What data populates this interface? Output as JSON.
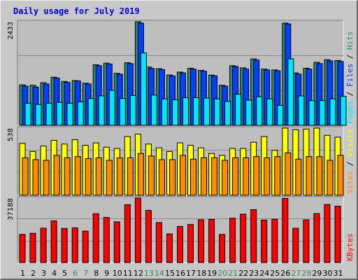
{
  "title": "Daily usage for July 2019",
  "colors": {
    "pages": "#00e8ff",
    "files": "#0040ff",
    "hits": "#2e8b7a",
    "visits": "#ffff00",
    "sites": "#ff8c00",
    "kbytes": "#ff0000",
    "weekend_day": "#2e8b57",
    "weekday_day": "#000000",
    "panel_bg": "#bebebe",
    "frame_bg": "#c8c8c8"
  },
  "chart_data": {
    "type": "bar",
    "categories": [
      "1",
      "2",
      "3",
      "4",
      "5",
      "6",
      "7",
      "8",
      "9",
      "10",
      "11",
      "12",
      "13",
      "14",
      "15",
      "16",
      "17",
      "18",
      "19",
      "20",
      "21",
      "22",
      "23",
      "24",
      "25",
      "26",
      "27",
      "28",
      "29",
      "30",
      "31"
    ],
    "weekend_days": [
      "6",
      "7",
      "13",
      "14",
      "20",
      "21",
      "27",
      "28"
    ],
    "panels": [
      {
        "id": "hits",
        "ymax_label": "2433",
        "ymax": 2433,
        "legend": [
          {
            "text": "Pages",
            "color_key": "pages"
          },
          {
            "text": " / ",
            "color_key": "weekday_day"
          },
          {
            "text": "Files",
            "color_key": "files"
          },
          {
            "text": " / ",
            "color_key": "weekday_day"
          },
          {
            "text": "Hits",
            "color_key": "hits"
          }
        ],
        "series": [
          {
            "name": "Hits",
            "color_key": "hits",
            "values": [
              950,
              940,
              1000,
              1130,
              1030,
              1050,
              990,
              1420,
              1460,
              1220,
              1470,
              2433,
              1370,
              1330,
              1180,
              1250,
              1340,
              1290,
              1180,
              940,
              1400,
              1350,
              1560,
              1320,
              1300,
              2400,
              1230,
              1340,
              1480,
              1540,
              1520
            ]
          },
          {
            "name": "Files",
            "color_key": "files",
            "values": [
              920,
              900,
              970,
              1110,
              1010,
              1040,
              970,
              1400,
              1440,
              1200,
              1450,
              2400,
              1340,
              1310,
              1160,
              1230,
              1320,
              1270,
              1160,
              920,
              1380,
              1320,
              1530,
              1300,
              1280,
              2380,
              1200,
              1320,
              1450,
              1510,
              1500
            ]
          },
          {
            "name": "Pages",
            "color_key": "pages",
            "values": [
              520,
              490,
              520,
              540,
              520,
              550,
              630,
              690,
              820,
              630,
              700,
              1700,
              710,
              620,
              600,
              650,
              650,
              640,
              620,
              560,
              730,
              590,
              670,
              620,
              470,
              1560,
              690,
              580,
              580,
              620,
              680
            ]
          }
        ]
      },
      {
        "id": "visits",
        "ymax_label": "538",
        "ymax": 538,
        "legend": [
          {
            "text": "Sites",
            "color_key": "sites"
          },
          {
            "text": " / ",
            "color_key": "weekday_day"
          },
          {
            "text": "Visits",
            "color_key": "visits"
          }
        ],
        "series": [
          {
            "name": "Visits",
            "color_key": "visits",
            "values": [
              415,
              350,
              395,
              440,
              410,
              445,
              400,
              420,
              385,
              375,
              470,
              490,
              410,
              380,
              350,
              420,
              400,
              380,
              335,
              320,
              375,
              375,
              425,
              470,
              360,
              538,
              525,
              530,
              538,
              480,
              465
            ]
          },
          {
            "name": "Sites",
            "color_key": "sites",
            "values": [
              300,
              285,
              280,
              320,
              300,
              310,
              295,
              300,
              280,
              300,
              300,
              335,
              315,
              285,
              285,
              320,
              290,
              300,
              300,
              280,
              300,
              300,
              310,
              300,
              310,
              340,
              290,
              310,
              310,
              280,
              320
            ]
          }
        ]
      },
      {
        "id": "kbytes",
        "ymax_label": "37188",
        "ymax": 37188,
        "legend": [
          {
            "text": "KBytes",
            "color_key": "kbytes"
          }
        ],
        "series": [
          {
            "name": "KBytes",
            "color_key": "kbytes",
            "values": [
              16200,
              16900,
              19800,
              24000,
              19700,
              20000,
              18100,
              28200,
              26000,
              23500,
              33400,
              37188,
              30100,
              23100,
              16500,
              20800,
              21900,
              24700,
              24900,
              16200,
              25600,
              27900,
              30500,
              24500,
              25000,
              37000,
              19800,
              24600,
              28200,
              33500,
              32500
            ]
          }
        ]
      }
    ]
  }
}
